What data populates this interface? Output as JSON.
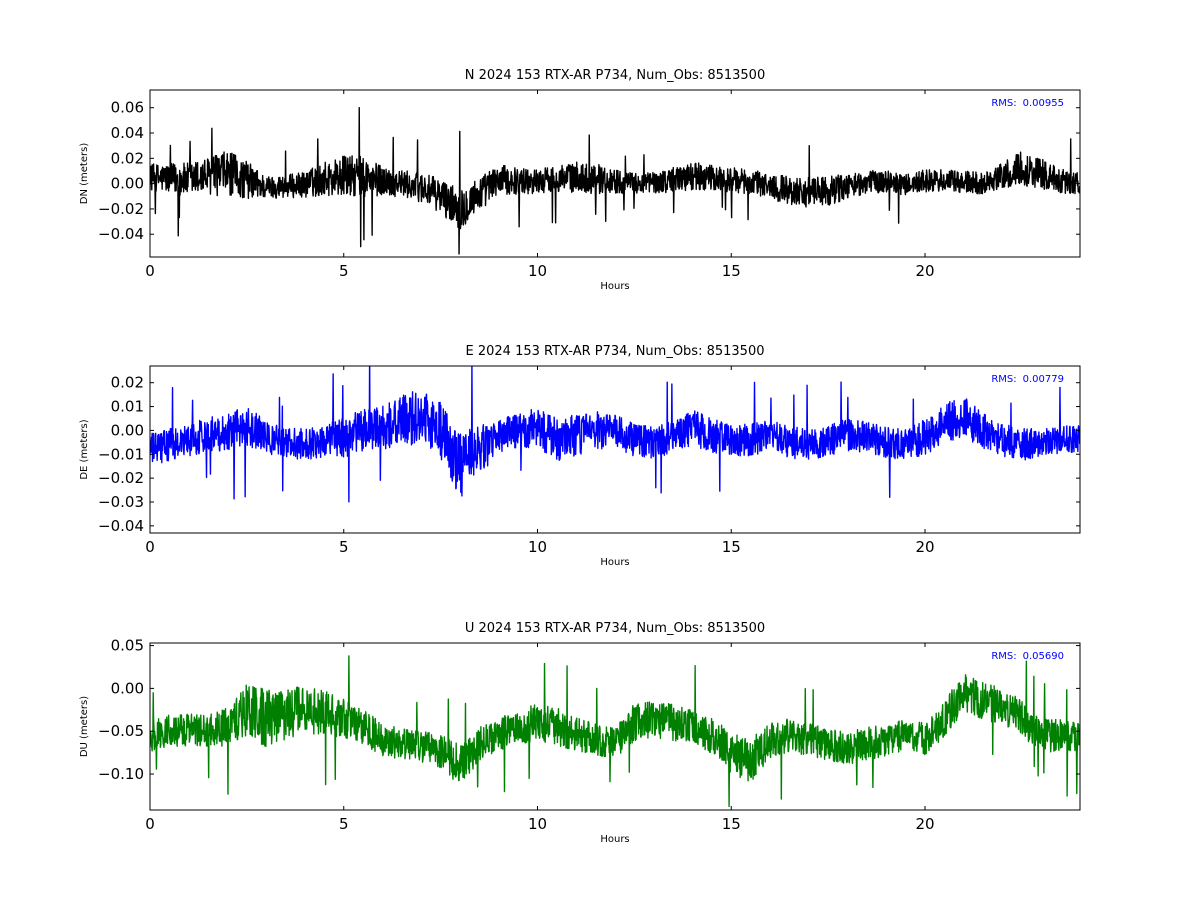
{
  "chart_data": [
    {
      "type": "line",
      "title": "N 2024 153 RTX-AR  P734, Num_Obs: 8513500",
      "xlabel": "Hours",
      "ylabel": "DN (meters)",
      "xlim": [
        0,
        24
      ],
      "ylim": [
        -0.058,
        0.074
      ],
      "xticks": [
        0,
        5,
        10,
        15,
        20
      ],
      "yticks": [
        -0.04,
        -0.02,
        0.0,
        0.02,
        0.04,
        0.06
      ],
      "ytick_labels": [
        "−0.04",
        "−0.02",
        "0.00",
        "0.02",
        "0.04",
        "0.06"
      ],
      "grid": false,
      "color": "#000000",
      "annotation": {
        "label": "RMS:",
        "value": "0.00955",
        "color": "#0000ff",
        "placement": "top-right"
      },
      "series": [
        {
          "x": [
            0,
            0.5,
            1,
            1.5,
            2,
            2.5,
            3,
            3.5,
            4,
            4.5,
            5,
            5.5,
            6,
            6.5,
            7,
            7.5,
            8,
            8.5,
            9,
            9.5,
            10,
            10.5,
            11,
            11.5,
            12,
            12.5,
            13,
            13.5,
            14,
            14.5,
            15,
            15.5,
            16,
            16.5,
            17,
            17.5,
            18,
            18.5,
            19,
            19.5,
            20,
            20.5,
            21,
            21.5,
            22,
            22.5,
            23,
            23.5,
            24
          ],
          "y": [
            0.005,
            0.004,
            0.003,
            0.006,
            0.008,
            0.003,
            -0.003,
            -0.002,
            -0.001,
            0.004,
            0.006,
            0.005,
            0.002,
            0.0,
            -0.003,
            -0.01,
            -0.02,
            -0.008,
            0.003,
            0.002,
            0.002,
            0.004,
            0.005,
            0.004,
            0.002,
            0.0,
            0.001,
            0.003,
            0.006,
            0.004,
            0.003,
            0.001,
            -0.002,
            -0.005,
            -0.007,
            -0.006,
            -0.002,
            0.001,
            0.002,
            -0.001,
            0.002,
            0.002,
            0.001,
            0.0,
            0.006,
            0.012,
            0.008,
            0.002,
            0.0
          ],
          "amplitude": [
            0.014,
            0.016,
            0.018,
            0.02,
            0.024,
            0.02,
            0.012,
            0.012,
            0.014,
            0.018,
            0.022,
            0.022,
            0.016,
            0.014,
            0.016,
            0.018,
            0.022,
            0.018,
            0.016,
            0.014,
            0.013,
            0.014,
            0.016,
            0.016,
            0.013,
            0.011,
            0.012,
            0.013,
            0.015,
            0.014,
            0.013,
            0.013,
            0.014,
            0.015,
            0.016,
            0.016,
            0.013,
            0.012,
            0.012,
            0.011,
            0.012,
            0.012,
            0.012,
            0.012,
            0.014,
            0.018,
            0.016,
            0.013,
            0.012
          ]
        }
      ]
    },
    {
      "type": "line",
      "title": "E 2024 153 RTX-AR  P734, Num_Obs: 8513500",
      "xlabel": "Hours",
      "ylabel": "DE (meters)",
      "xlim": [
        0,
        24
      ],
      "ylim": [
        -0.043,
        0.027
      ],
      "xticks": [
        0,
        5,
        10,
        15,
        20
      ],
      "yticks": [
        -0.04,
        -0.03,
        -0.02,
        -0.01,
        0.0,
        0.01,
        0.02
      ],
      "ytick_labels": [
        "−0.04",
        "−0.03",
        "−0.02",
        "−0.01",
        "0.00",
        "0.01",
        "0.02"
      ],
      "grid": false,
      "color": "#0000ff",
      "annotation": {
        "label": "RMS:",
        "value": "0.00779",
        "color": "#0000ff",
        "placement": "top-right"
      },
      "series": [
        {
          "x": [
            0,
            0.5,
            1,
            1.5,
            2,
            2.5,
            3,
            3.5,
            4,
            4.5,
            5,
            5.5,
            6,
            6.5,
            7,
            7.5,
            8,
            8.5,
            9,
            9.5,
            10,
            10.5,
            11,
            11.5,
            12,
            12.5,
            13,
            13.5,
            14,
            14.5,
            15,
            15.5,
            16,
            16.5,
            17,
            17.5,
            18,
            18.5,
            19,
            19.5,
            20,
            20.5,
            21,
            21.5,
            22,
            22.5,
            23,
            23.5,
            24
          ],
          "y": [
            -0.008,
            -0.006,
            -0.004,
            -0.002,
            0.0,
            0.002,
            -0.003,
            -0.005,
            -0.006,
            -0.004,
            -0.003,
            0.0,
            0.001,
            0.004,
            0.006,
            0.0,
            -0.015,
            -0.008,
            -0.003,
            0.0,
            0.001,
            -0.004,
            -0.002,
            0.0,
            -0.001,
            -0.004,
            -0.005,
            -0.003,
            0.001,
            -0.002,
            -0.004,
            -0.004,
            -0.002,
            -0.005,
            -0.006,
            -0.004,
            -0.002,
            -0.003,
            -0.005,
            -0.006,
            -0.003,
            0.003,
            0.006,
            0.0,
            -0.004,
            -0.006,
            -0.005,
            -0.004,
            -0.004
          ],
          "amplitude": [
            0.009,
            0.009,
            0.009,
            0.01,
            0.011,
            0.011,
            0.009,
            0.008,
            0.009,
            0.01,
            0.011,
            0.012,
            0.012,
            0.014,
            0.016,
            0.016,
            0.018,
            0.014,
            0.01,
            0.01,
            0.011,
            0.012,
            0.012,
            0.011,
            0.01,
            0.009,
            0.009,
            0.009,
            0.01,
            0.01,
            0.009,
            0.009,
            0.009,
            0.009,
            0.009,
            0.009,
            0.009,
            0.009,
            0.009,
            0.009,
            0.01,
            0.011,
            0.012,
            0.01,
            0.009,
            0.009,
            0.008,
            0.008,
            0.008
          ]
        }
      ]
    },
    {
      "type": "line",
      "title": "U 2024 153 RTX-AR  P734, Num_Obs: 8513500",
      "xlabel": "Hours",
      "ylabel": "DU (meters)",
      "xlim": [
        0,
        24
      ],
      "ylim": [
        -0.142,
        0.053
      ],
      "xticks": [
        0,
        5,
        10,
        15,
        20
      ],
      "yticks": [
        -0.1,
        -0.05,
        0.0,
        0.05
      ],
      "ytick_labels": [
        "−0.10",
        "−0.05",
        "0.00",
        "0.05"
      ],
      "grid": false,
      "color": "#008000",
      "annotation": {
        "label": "RMS:",
        "value": "0.05690",
        "color": "#0000ff",
        "placement": "top-right"
      },
      "series": [
        {
          "x": [
            0,
            0.5,
            1,
            1.5,
            2,
            2.5,
            3,
            3.5,
            4,
            4.5,
            5,
            5.5,
            6,
            6.5,
            7,
            7.5,
            8,
            8.5,
            9,
            9.5,
            10,
            10.5,
            11,
            11.5,
            12,
            12.5,
            13,
            13.5,
            14,
            14.5,
            15,
            15.5,
            16,
            16.5,
            17,
            17.5,
            18,
            18.5,
            19,
            19.5,
            20,
            20.5,
            21,
            21.5,
            22,
            22.5,
            23,
            23.5,
            24
          ],
          "y": [
            -0.055,
            -0.05,
            -0.048,
            -0.05,
            -0.045,
            -0.025,
            -0.035,
            -0.03,
            -0.025,
            -0.028,
            -0.035,
            -0.045,
            -0.06,
            -0.065,
            -0.068,
            -0.075,
            -0.09,
            -0.065,
            -0.055,
            -0.045,
            -0.04,
            -0.045,
            -0.055,
            -0.06,
            -0.065,
            -0.04,
            -0.035,
            -0.04,
            -0.045,
            -0.055,
            -0.075,
            -0.085,
            -0.06,
            -0.055,
            -0.06,
            -0.065,
            -0.07,
            -0.065,
            -0.06,
            -0.055,
            -0.06,
            -0.035,
            -0.005,
            -0.015,
            -0.02,
            -0.035,
            -0.055,
            -0.055,
            -0.06
          ],
          "amplitude": [
            0.025,
            0.025,
            0.025,
            0.025,
            0.03,
            0.045,
            0.045,
            0.04,
            0.038,
            0.035,
            0.03,
            0.028,
            0.026,
            0.025,
            0.025,
            0.028,
            0.032,
            0.028,
            0.026,
            0.028,
            0.03,
            0.03,
            0.028,
            0.026,
            0.025,
            0.03,
            0.03,
            0.028,
            0.026,
            0.028,
            0.032,
            0.034,
            0.028,
            0.026,
            0.025,
            0.026,
            0.026,
            0.026,
            0.025,
            0.025,
            0.026,
            0.028,
            0.03,
            0.03,
            0.028,
            0.028,
            0.026,
            0.025,
            0.025
          ]
        }
      ]
    }
  ]
}
